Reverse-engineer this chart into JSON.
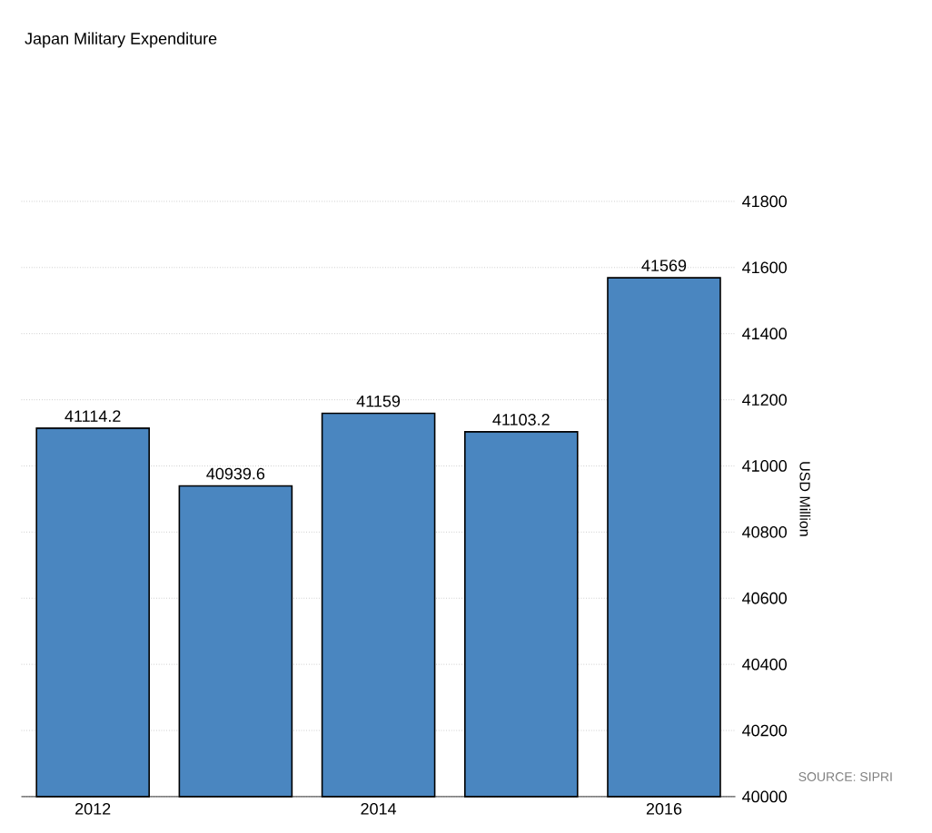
{
  "chart_data": {
    "type": "bar",
    "title": "Japan Military Expenditure",
    "categories": [
      "2012",
      null,
      "2014",
      null,
      "2016"
    ],
    "values": [
      41114.2,
      40939.6,
      41159,
      41103.2,
      41569
    ],
    "color": "#4a86c0",
    "ylim": [
      40000,
      41800
    ],
    "yticks": [
      40000,
      40200,
      40400,
      40600,
      40800,
      41000,
      41200,
      41400,
      41600,
      41800
    ],
    "ylabel": "USD Million",
    "grid": "y",
    "data_labels": true,
    "annotations": [
      "SOURCE: SIPRI"
    ]
  }
}
